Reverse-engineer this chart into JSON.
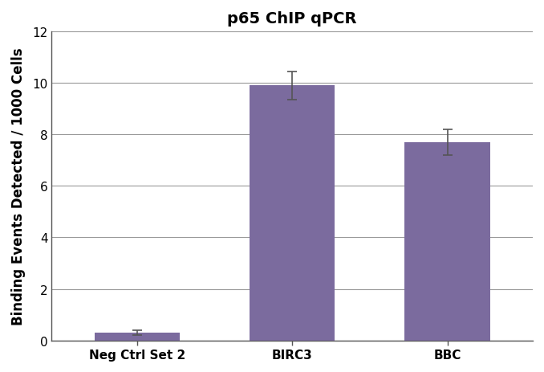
{
  "title": "p65 ChIP qPCR",
  "categories": [
    "Neg Ctrl Set 2",
    "BIRC3",
    "BBC"
  ],
  "values": [
    0.3,
    9.9,
    7.7
  ],
  "errors": [
    0.1,
    0.55,
    0.5
  ],
  "bar_color": "#7B6B9E",
  "bar_edgecolor": "#7B6B9E",
  "ylabel": "Binding Events Detected / 1000 Cells",
  "ylim": [
    0,
    12
  ],
  "yticks": [
    0,
    2,
    4,
    6,
    8,
    10,
    12
  ],
  "background_color": "#ffffff",
  "grid_color": "#999999",
  "title_fontsize": 14,
  "label_fontsize": 12,
  "tick_fontsize": 11,
  "bar_width": 0.55,
  "error_capsize": 4,
  "error_linewidth": 1.2,
  "error_color": "#555555",
  "spine_color": "#555555"
}
